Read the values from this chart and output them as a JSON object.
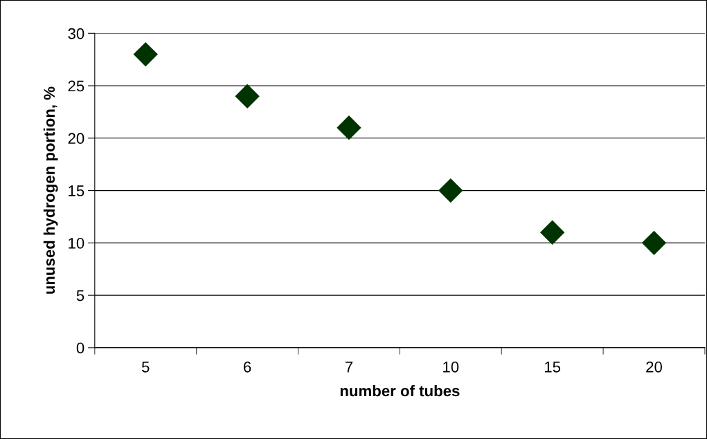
{
  "chart_data": {
    "type": "scatter",
    "xlabel": "number of tubes",
    "ylabel": "unused hydrogen portion, %",
    "categories": [
      "5",
      "6",
      "7",
      "10",
      "15",
      "20"
    ],
    "series": [
      {
        "color": "#003300",
        "values": [
          28,
          24,
          21,
          15,
          11,
          10
        ]
      }
    ],
    "ylim": [
      0,
      30
    ],
    "yticks": [
      0,
      5,
      10,
      15,
      20,
      25,
      30
    ],
    "grid": "y",
    "marker": "diamond",
    "legend": false
  }
}
